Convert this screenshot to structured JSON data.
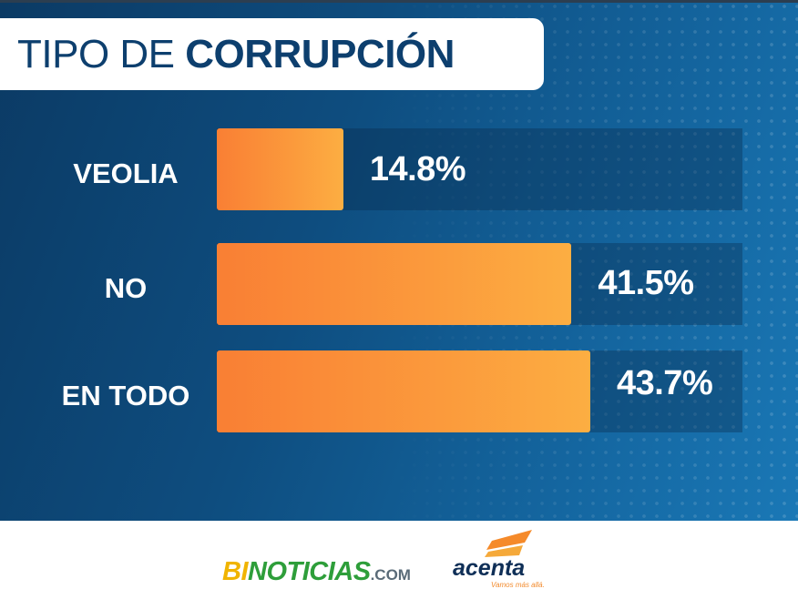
{
  "title": {
    "light": "TIPO DE ",
    "bold": "CORRUPCIÓN"
  },
  "chart_data": {
    "type": "bar",
    "orientation": "horizontal",
    "categories": [
      "VEOLIA",
      "NO",
      "EN TODO"
    ],
    "values": [
      14.8,
      41.5,
      43.7
    ],
    "value_labels": [
      "14.8%",
      "41.5%",
      "43.7%"
    ],
    "xlim": [
      0,
      61.5
    ],
    "unit": "%"
  },
  "footer": {
    "logo_bi": {
      "bi": "BI",
      "noticias": "NOTICIAS",
      "dotcom": ".COM"
    },
    "logo_acenta": {
      "name": "acenta",
      "tagline": "Vamos más allá."
    }
  },
  "colors": {
    "panel_background": "#0e4d7f",
    "title_text": "#0d3f6e",
    "bar_start": "#f97f34",
    "bar_end": "#fcae42",
    "label_text": "#ffffff"
  }
}
